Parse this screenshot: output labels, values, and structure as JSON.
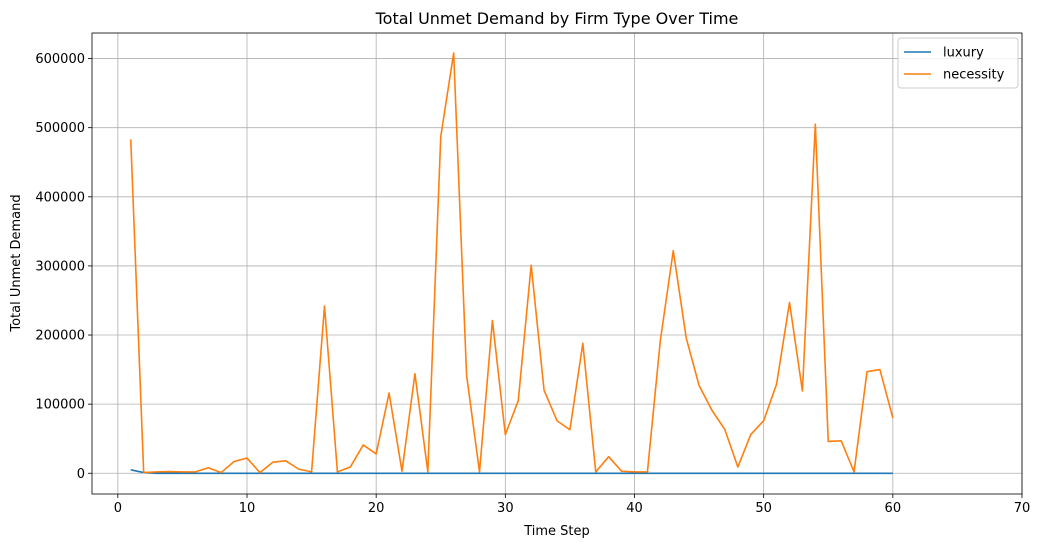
{
  "chart_data": {
    "type": "line",
    "title": "Total Unmet Demand by Firm Type Over Time",
    "xlabel": "Time Step",
    "ylabel": "Total Unmet Demand",
    "xlim": [
      -2,
      70
    ],
    "ylim": [
      -30000,
      637000
    ],
    "xticks": [
      0,
      10,
      20,
      30,
      40,
      50,
      60,
      70
    ],
    "yticks": [
      0,
      100000,
      200000,
      300000,
      400000,
      500000,
      600000
    ],
    "grid": true,
    "legend_position": "top-right",
    "series": [
      {
        "name": "luxury",
        "color": "#1f77b4",
        "x": [
          1,
          2,
          3,
          4,
          5,
          6,
          7,
          8,
          9,
          10,
          11,
          12,
          13,
          14,
          15,
          16,
          17,
          18,
          19,
          20,
          21,
          22,
          23,
          24,
          25,
          26,
          27,
          28,
          29,
          30,
          31,
          32,
          33,
          34,
          35,
          36,
          37,
          38,
          39,
          40,
          41,
          42,
          43,
          44,
          45,
          46,
          47,
          48,
          49,
          50,
          51,
          52,
          53,
          54,
          55,
          56,
          57,
          58,
          59,
          60
        ],
        "y": [
          5000,
          1000,
          0,
          0,
          0,
          0,
          0,
          0,
          0,
          0,
          0,
          0,
          0,
          0,
          0,
          0,
          0,
          0,
          0,
          0,
          0,
          0,
          0,
          0,
          0,
          0,
          0,
          0,
          0,
          0,
          0,
          0,
          0,
          0,
          0,
          0,
          0,
          0,
          0,
          0,
          0,
          0,
          0,
          0,
          0,
          0,
          0,
          0,
          0,
          0,
          0,
          0,
          0,
          0,
          0,
          0,
          0,
          0,
          0,
          0
        ]
      },
      {
        "name": "necessity",
        "color": "#ff7f0e",
        "x": [
          1,
          2,
          3,
          4,
          5,
          6,
          7,
          8,
          9,
          10,
          11,
          12,
          13,
          14,
          15,
          16,
          17,
          18,
          19,
          20,
          21,
          22,
          23,
          24,
          25,
          26,
          27,
          28,
          29,
          30,
          31,
          32,
          33,
          34,
          35,
          36,
          37,
          38,
          39,
          40,
          41,
          42,
          43,
          44,
          45,
          46,
          47,
          48,
          49,
          50,
          51,
          52,
          53,
          54,
          55,
          56,
          57,
          58,
          59,
          60
        ],
        "y": [
          483000,
          1000,
          2000,
          2500,
          2000,
          2000,
          8000,
          1000,
          17000,
          22000,
          1000,
          16000,
          18000,
          6000,
          2000,
          242000,
          2000,
          9000,
          41000,
          28000,
          116000,
          3000,
          144000,
          2000,
          487000,
          608000,
          142000,
          2000,
          221000,
          56000,
          105000,
          301000,
          120000,
          76000,
          63000,
          188000,
          2000,
          24000,
          3000,
          2000,
          2000,
          192000,
          322000,
          196000,
          127000,
          91000,
          63000,
          9000,
          56000,
          76000,
          129000,
          247000,
          119000,
          505000,
          46000,
          47000,
          2000,
          147000,
          150000,
          80000
        ]
      }
    ]
  }
}
